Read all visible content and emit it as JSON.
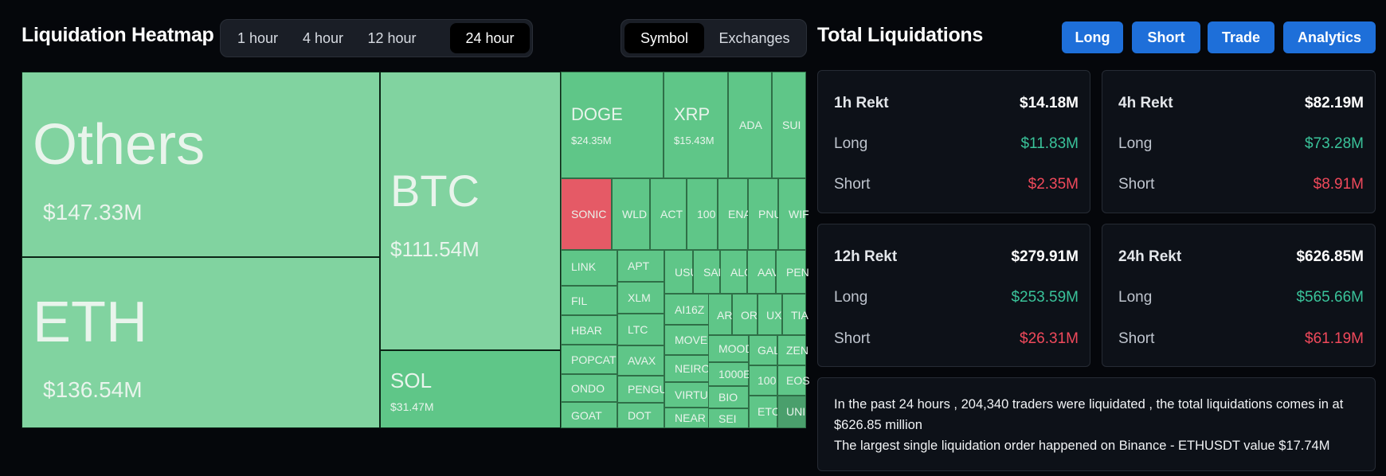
{
  "header": {
    "title": "Liquidation Heatmap",
    "time_tabs": [
      "1 hour",
      "4 hour",
      "12 hour",
      "24 hour"
    ],
    "active_time_tab": "24 hour",
    "view_tabs": [
      "Symbol",
      "Exchanges"
    ],
    "active_view_tab": "Symbol"
  },
  "right_header": {
    "title": "Total Liquidations",
    "buttons": [
      "Long",
      "Short",
      "Trade",
      "Analytics"
    ]
  },
  "colors": {
    "positive_tile": "#81d3a0",
    "negative_tile": "#e55a66",
    "long_text": "#3ac39a",
    "short_text": "#f0495b",
    "button_blue": "#1e6fd9"
  },
  "heatmap": {
    "tiles": [
      {
        "symbol": "Others",
        "value": "$147.33M"
      },
      {
        "symbol": "ETH",
        "value": "$136.54M"
      },
      {
        "symbol": "BTC",
        "value": "$111.54M"
      },
      {
        "symbol": "SOL",
        "value": "$31.47M"
      },
      {
        "symbol": "DOGE",
        "value": "$24.35M"
      },
      {
        "symbol": "XRP",
        "value": "$15.43M"
      },
      {
        "symbol": "ADA"
      },
      {
        "symbol": "SUI"
      },
      {
        "symbol": "SONIC"
      },
      {
        "symbol": "WLD"
      },
      {
        "symbol": "ACT"
      },
      {
        "symbol": "100"
      },
      {
        "symbol": "ENA"
      },
      {
        "symbol": "PNU"
      },
      {
        "symbol": "WIF"
      },
      {
        "symbol": "LINK"
      },
      {
        "symbol": "APT"
      },
      {
        "symbol": "USU"
      },
      {
        "symbol": "SAN"
      },
      {
        "symbol": "ALG"
      },
      {
        "symbol": "AAV"
      },
      {
        "symbol": "PEN"
      },
      {
        "symbol": "FIL"
      },
      {
        "symbol": "XLM"
      },
      {
        "symbol": "AI16Z"
      },
      {
        "symbol": "AR"
      },
      {
        "symbol": "OR"
      },
      {
        "symbol": "UX"
      },
      {
        "symbol": "TIA"
      },
      {
        "symbol": "HBAR"
      },
      {
        "symbol": "LTC"
      },
      {
        "symbol": "MOVE"
      },
      {
        "symbol": "MOOD"
      },
      {
        "symbol": "GAL"
      },
      {
        "symbol": "ZEN"
      },
      {
        "symbol": "POPCAT"
      },
      {
        "symbol": "AVAX"
      },
      {
        "symbol": "NEIRO"
      },
      {
        "symbol": "1000E"
      },
      {
        "symbol": "ONDO"
      },
      {
        "symbol": "PENGU"
      },
      {
        "symbol": "VIRTU"
      },
      {
        "symbol": "BIO"
      },
      {
        "symbol": "100"
      },
      {
        "symbol": "EOS"
      },
      {
        "symbol": "GOAT"
      },
      {
        "symbol": "DOT"
      },
      {
        "symbol": "NEAR"
      },
      {
        "symbol": "SEI"
      },
      {
        "symbol": "ETC"
      },
      {
        "symbol": "UNI"
      }
    ]
  },
  "stats": [
    {
      "title": "1h Rekt",
      "total": "$14.18M",
      "long_label": "Long",
      "long": "$11.83M",
      "short_label": "Short",
      "short": "$2.35M"
    },
    {
      "title": "4h Rekt",
      "total": "$82.19M",
      "long_label": "Long",
      "long": "$73.28M",
      "short_label": "Short",
      "short": "$8.91M"
    },
    {
      "title": "12h Rekt",
      "total": "$279.91M",
      "long_label": "Long",
      "long": "$253.59M",
      "short_label": "Short",
      "short": "$26.31M"
    },
    {
      "title": "24h Rekt",
      "total": "$626.85M",
      "long_label": "Long",
      "long": "$565.66M",
      "short_label": "Short",
      "short": "$61.19M"
    }
  ],
  "summary": {
    "line1": "In the past 24 hours , 204,340 traders were liquidated , the total liquidations comes in at $626.85 million",
    "line2": "The largest single liquidation order happened on Binance - ETHUSDT value $17.74M"
  }
}
